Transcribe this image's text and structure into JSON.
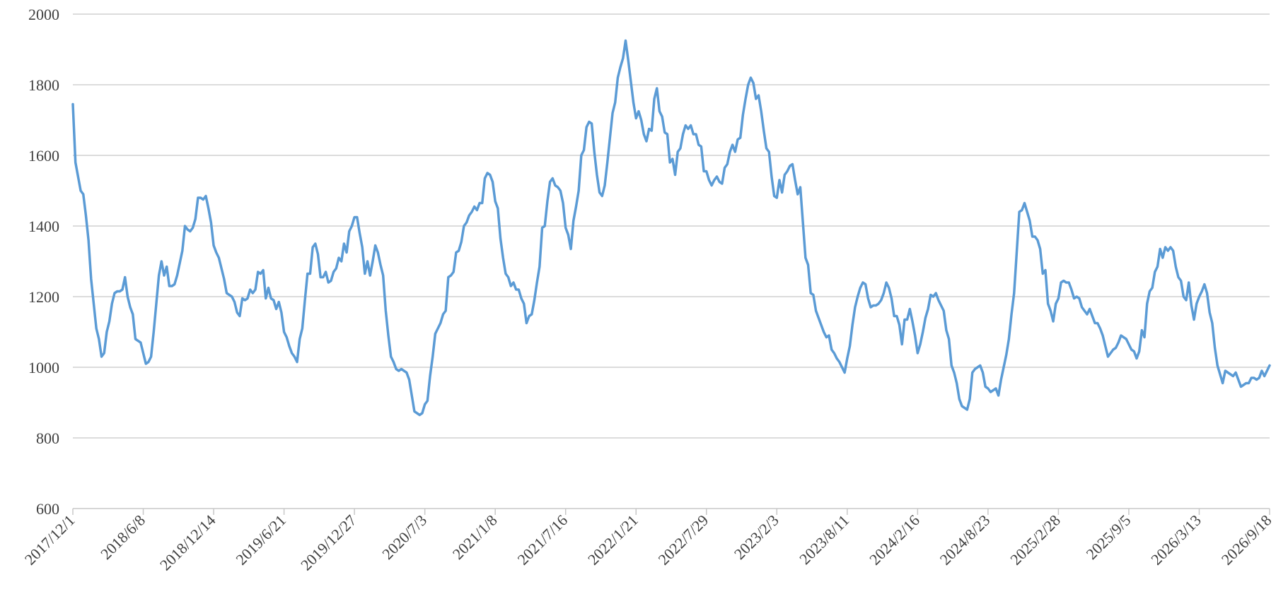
{
  "chart_data": {
    "type": "line",
    "title": "",
    "xlabel": "",
    "ylabel": "",
    "ylim": [
      600,
      2000
    ],
    "yticks": [
      600,
      800,
      1000,
      1200,
      1400,
      1600,
      1800,
      2000
    ],
    "xtick_labels": [
      "2017/12/1",
      "2018/6/8",
      "2018/12/14",
      "2019/6/21",
      "2019/12/27",
      "2020/7/3",
      "2021/1/8",
      "2021/7/16",
      "2022/1/21",
      "2022/7/29",
      "2023/2/3",
      "2023/8/11",
      "2024/2/16",
      "2024/8/23",
      "2025/2/28",
      "2025/9/5",
      "2026/3/13",
      "2026/9/18"
    ],
    "grid": true,
    "legend": "none",
    "color": "#5b9bd5",
    "series": [
      {
        "values": [
          1745,
          1580,
          1540,
          1500,
          1490,
          1430,
          1360,
          1250,
          1180,
          1110,
          1080,
          1030,
          1040,
          1100,
          1130,
          1180,
          1210,
          1215,
          1215,
          1220,
          1255,
          1200,
          1170,
          1150,
          1080,
          1075,
          1070,
          1040,
          1010,
          1015,
          1030,
          1100,
          1180,
          1260,
          1300,
          1260,
          1285,
          1230,
          1230,
          1235,
          1260,
          1295,
          1330,
          1400,
          1390,
          1385,
          1395,
          1420,
          1480,
          1480,
          1475,
          1485,
          1450,
          1410,
          1345,
          1325,
          1310,
          1280,
          1250,
          1210,
          1205,
          1200,
          1185,
          1155,
          1145,
          1195,
          1190,
          1195,
          1220,
          1210,
          1220,
          1270,
          1265,
          1275,
          1195,
          1225,
          1195,
          1190,
          1165,
          1185,
          1155,
          1100,
          1085,
          1060,
          1040,
          1030,
          1015,
          1080,
          1110,
          1190,
          1265,
          1265,
          1340,
          1350,
          1320,
          1255,
          1255,
          1270,
          1240,
          1245,
          1270,
          1280,
          1310,
          1300,
          1350,
          1325,
          1385,
          1400,
          1425,
          1425,
          1380,
          1340,
          1265,
          1300,
          1260,
          1300,
          1345,
          1325,
          1290,
          1260,
          1160,
          1090,
          1030,
          1015,
          995,
          990,
          995,
          990,
          985,
          965,
          920,
          875,
          870,
          865,
          870,
          895,
          905,
          975,
          1030,
          1095,
          1110,
          1125,
          1150,
          1160,
          1255,
          1260,
          1270,
          1325,
          1330,
          1355,
          1400,
          1410,
          1430,
          1440,
          1455,
          1445,
          1465,
          1465,
          1535,
          1550,
          1545,
          1525,
          1470,
          1450,
          1365,
          1310,
          1265,
          1255,
          1230,
          1240,
          1220,
          1220,
          1195,
          1180,
          1125,
          1145,
          1150,
          1190,
          1240,
          1285,
          1395,
          1400,
          1470,
          1525,
          1535,
          1515,
          1510,
          1500,
          1465,
          1395,
          1375,
          1335,
          1415,
          1455,
          1500,
          1600,
          1615,
          1680,
          1695,
          1690,
          1610,
          1545,
          1495,
          1485,
          1515,
          1580,
          1650,
          1720,
          1750,
          1820,
          1850,
          1875,
          1925,
          1870,
          1810,
          1750,
          1705,
          1725,
          1700,
          1660,
          1640,
          1675,
          1670,
          1760,
          1790,
          1725,
          1710,
          1665,
          1660,
          1580,
          1590,
          1545,
          1610,
          1620,
          1660,
          1685,
          1675,
          1685,
          1660,
          1660,
          1630,
          1625,
          1555,
          1555,
          1530,
          1515,
          1530,
          1540,
          1525,
          1520,
          1565,
          1575,
          1610,
          1630,
          1610,
          1645,
          1650,
          1715,
          1760,
          1800,
          1820,
          1805,
          1760,
          1770,
          1725,
          1670,
          1620,
          1610,
          1540,
          1485,
          1480,
          1530,
          1495,
          1545,
          1555,
          1570,
          1575,
          1530,
          1490,
          1510,
          1410,
          1310,
          1290,
          1210,
          1205,
          1160,
          1140,
          1120,
          1100,
          1085,
          1090,
          1050,
          1040,
          1025,
          1015,
          1000,
          985,
          1025,
          1060,
          1120,
          1170,
          1200,
          1225,
          1240,
          1235,
          1195,
          1170,
          1175,
          1175,
          1180,
          1190,
          1210,
          1240,
          1225,
          1195,
          1145,
          1145,
          1120,
          1065,
          1135,
          1135,
          1165,
          1130,
          1090,
          1040,
          1065,
          1100,
          1140,
          1165,
          1205,
          1200,
          1210,
          1190,
          1175,
          1160,
          1105,
          1080,
          1005,
          985,
          955,
          910,
          890,
          885,
          880,
          910,
          985,
          995,
          1000,
          1005,
          985,
          945,
          940,
          930,
          935,
          940,
          920,
          965,
          1000,
          1035,
          1080,
          1150,
          1210,
          1325,
          1440,
          1445,
          1465,
          1440,
          1415,
          1370,
          1370,
          1360,
          1335,
          1265,
          1275,
          1180,
          1160,
          1130,
          1180,
          1195,
          1240,
          1245,
          1240,
          1240,
          1220,
          1195,
          1200,
          1195,
          1170,
          1160,
          1150,
          1165,
          1145,
          1125,
          1125,
          1110,
          1090,
          1060,
          1030,
          1040,
          1050,
          1055,
          1070,
          1090,
          1085,
          1080,
          1065,
          1050,
          1045,
          1025,
          1045,
          1105,
          1085,
          1180,
          1215,
          1225,
          1270,
          1285,
          1335,
          1310,
          1340,
          1330,
          1340,
          1330,
          1285,
          1255,
          1245,
          1200,
          1190,
          1240,
          1175,
          1135,
          1180,
          1200,
          1215,
          1235,
          1210,
          1155,
          1125,
          1055,
          1005,
          980,
          955,
          990,
          985,
          980,
          975,
          985,
          965,
          945,
          950,
          955,
          955,
          970,
          970,
          965,
          970,
          990,
          975,
          990,
          1005
        ]
      }
    ]
  }
}
